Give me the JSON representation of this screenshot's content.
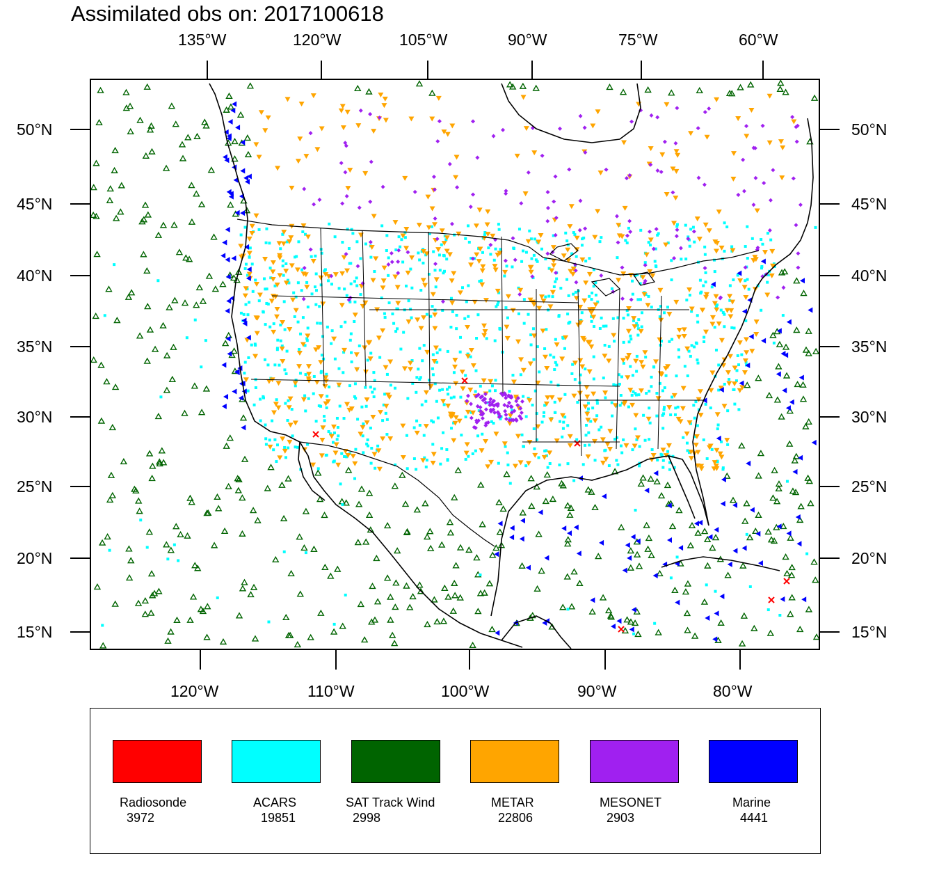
{
  "title": "Assimilated obs on: 2017100618",
  "top_axis_labels": [
    "135°W",
    "120°W",
    "105°W",
    "90°W",
    "75°W",
    "60°W"
  ],
  "bottom_axis_labels": [
    "120°W",
    "110°W",
    "100°W",
    "90°W",
    "80°W"
  ],
  "left_axis_labels": [
    "50°N",
    "45°N",
    "40°N",
    "35°N",
    "30°N",
    "25°N",
    "20°N",
    "15°N"
  ],
  "right_axis_labels": [
    "50°N",
    "45°N",
    "40°N",
    "35°N",
    "30°N",
    "25°N",
    "20°N",
    "15°N"
  ],
  "legend": [
    {
      "name": "Radiosonde",
      "count": "3972",
      "color": "#ff0000",
      "marker": "x-icon"
    },
    {
      "name": "ACARS",
      "count": "19851",
      "color": "#00ffff",
      "marker": "square-icon"
    },
    {
      "name": "SAT Track Wind",
      "count": "2998",
      "color": "#006400",
      "marker": "triangle-up-icon"
    },
    {
      "name": "METAR",
      "count": "22806",
      "color": "#ffa500",
      "marker": "triangle-down-icon"
    },
    {
      "name": "MESONET",
      "count": "2903",
      "color": "#a020f0",
      "marker": "diamond-icon"
    },
    {
      "name": "Marine",
      "count": "4441",
      "color": "#0000ff",
      "marker": "triangle-left-icon"
    }
  ]
}
